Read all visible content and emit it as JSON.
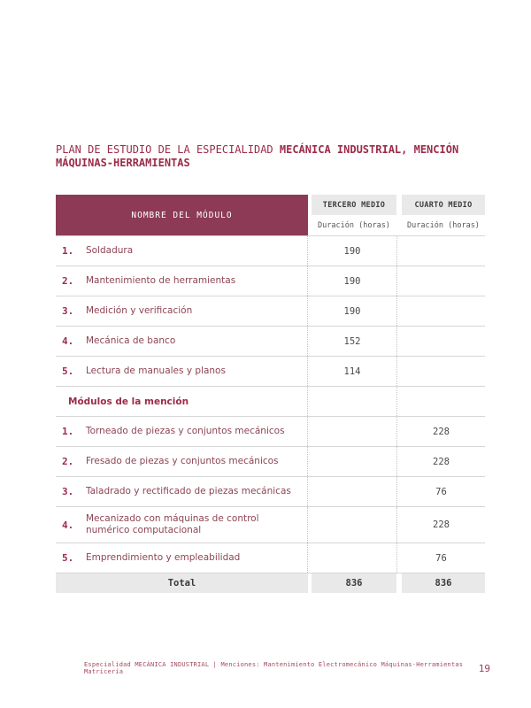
{
  "colors": {
    "accent_maroon": "#9c2b49",
    "table_header_bg": "#8d3a57",
    "table_header_text": "#ffffff",
    "subheader_bg": "#e9e9e9",
    "module_text": "#8d4454",
    "value_text": "#4a4a4a"
  },
  "title": {
    "regular": "PLAN DE ESTUDIO DE LA ESPECIALIDAD ",
    "bold": "MECÁNICA INDUSTRIAL, MENCIÓN MÁQUINAS-HERRAMIENTAS"
  },
  "table": {
    "header": {
      "module_col": "NOMBRE DEL MÓDULO",
      "tercero_title": "TERCERO MEDIO",
      "tercero_sub": "Duración (horas)",
      "cuarto_title": "CUARTO MEDIO",
      "cuarto_sub": "Duración (horas)"
    },
    "sections": [
      {
        "label": "",
        "rows": [
          {
            "num": "1.",
            "name": "Soldadura",
            "tercero": "190",
            "cuarto": ""
          },
          {
            "num": "2.",
            "name": "Mantenimiento de herramientas",
            "tercero": "190",
            "cuarto": ""
          },
          {
            "num": "3.",
            "name": "Medición y verificación",
            "tercero": "190",
            "cuarto": ""
          },
          {
            "num": "4.",
            "name": "Mecánica de banco",
            "tercero": "152",
            "cuarto": ""
          },
          {
            "num": "5.",
            "name": "Lectura de manuales y planos",
            "tercero": "114",
            "cuarto": ""
          }
        ]
      },
      {
        "label": "Módulos de la mención",
        "rows": [
          {
            "num": "1.",
            "name": "Torneado de piezas y conjuntos mecánicos",
            "tercero": "",
            "cuarto": "228"
          },
          {
            "num": "2.",
            "name": "Fresado de piezas y conjuntos mecánicos",
            "tercero": "",
            "cuarto": "228"
          },
          {
            "num": "3.",
            "name": "Taladrado y rectificado de piezas mecánicas",
            "tercero": "",
            "cuarto": "76"
          },
          {
            "num": "4.",
            "name": "Mecanizado con máquinas de control numérico computacional",
            "tercero": "",
            "cuarto": "228"
          },
          {
            "num": "5.",
            "name": "Emprendimiento y empleabilidad",
            "tercero": "",
            "cuarto": "76"
          }
        ]
      }
    ],
    "total": {
      "label": "Total",
      "tercero": "836",
      "cuarto": "836"
    }
  },
  "footer": {
    "text": "Especialidad MECÁNICA INDUSTRIAL | Menciones: Mantenimiento Electromecánico Máquinas-Herramientas Matricería",
    "page_number": "19"
  }
}
